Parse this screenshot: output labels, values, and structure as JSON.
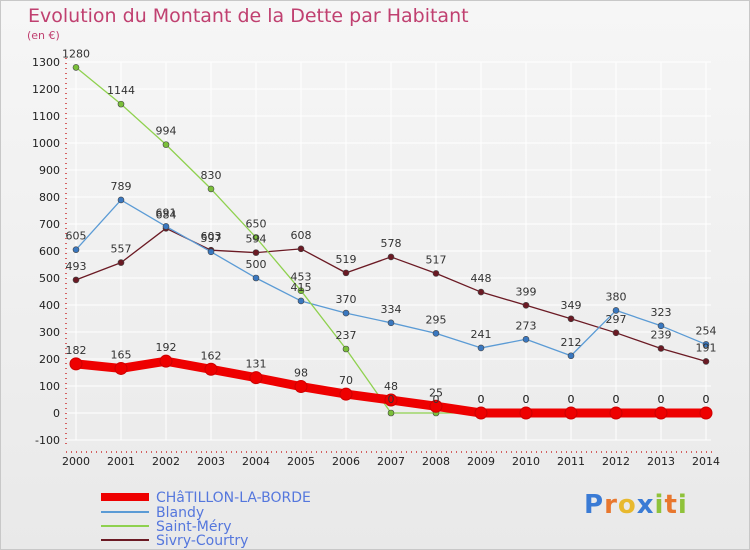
{
  "title": "Evolution du Montant de la Dette par Habitant",
  "unit_label": "(en €)",
  "logo": {
    "text": "Proxiti",
    "letters": [
      {
        "ch": "P",
        "color": "#3a7bd5"
      },
      {
        "ch": "r",
        "color": "#e8772e"
      },
      {
        "ch": "o",
        "color": "#e8b92e"
      },
      {
        "ch": "x",
        "color": "#3a7bd5"
      },
      {
        "ch": "i",
        "color": "#8fc23a"
      },
      {
        "ch": "t",
        "color": "#e8772e"
      },
      {
        "ch": "i",
        "color": "#8fc23a"
      }
    ]
  },
  "legend": [
    {
      "name": "CHâTILLON-LA-BORDE",
      "color": "#ee0000",
      "thick": true
    },
    {
      "name": "Blandy",
      "color": "#5b9bd5",
      "thick": false
    },
    {
      "name": "Saint-Méry",
      "color": "#8fd14f",
      "thick": false
    },
    {
      "name": "Sivry-Courtry",
      "color": "#6b1a24",
      "thick": false
    }
  ],
  "chart_data": {
    "type": "line",
    "title": "Evolution du Montant de la Dette par Habitant",
    "ylabel": "(en €)",
    "xlabel": "",
    "ylim": [
      -100,
      1300
    ],
    "yticks": [
      -100,
      0,
      100,
      200,
      300,
      400,
      500,
      600,
      700,
      800,
      900,
      1000,
      1100,
      1200,
      1300
    ],
    "grid": true,
    "categories": [
      "2000",
      "2001",
      "2002",
      "2003",
      "2004",
      "2005",
      "2006",
      "2007",
      "2008",
      "2009",
      "2010",
      "2011",
      "2012",
      "2013",
      "2014"
    ],
    "series": [
      {
        "name": "Sivry-Courtry",
        "color": "#6b1a24",
        "marker": "#6b1a24",
        "width": 1.3,
        "r": 3,
        "values": [
          493,
          557,
          684,
          603,
          594,
          608,
          519,
          578,
          517,
          448,
          399,
          349,
          297,
          239,
          191
        ]
      },
      {
        "name": "Blandy",
        "color": "#5b9bd5",
        "marker": "#3a78c0",
        "width": 1.3,
        "r": 3,
        "values": [
          605,
          789,
          691,
          597,
          500,
          415,
          370,
          334,
          295,
          241,
          273,
          212,
          380,
          323,
          254
        ]
      },
      {
        "name": "Saint-Méry",
        "color": "#8fd14f",
        "marker": "#7bc03a",
        "width": 1.3,
        "r": 3,
        "values": [
          1280,
          1144,
          994,
          830,
          650,
          453,
          237,
          0,
          0,
          0,
          0,
          0,
          0,
          0,
          0
        ]
      },
      {
        "name": "CHâTILLON-LA-BORDE",
        "color": "#ee0000",
        "marker": "#ee0000",
        "width": 9,
        "r": 6,
        "values": [
          182,
          165,
          192,
          162,
          131,
          98,
          70,
          48,
          25,
          0,
          0,
          0,
          0,
          0,
          0
        ]
      }
    ]
  }
}
